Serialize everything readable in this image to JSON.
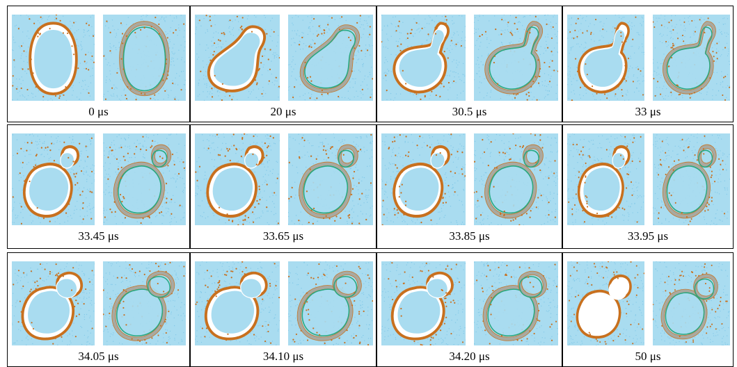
{
  "figure": {
    "rows": [
      {
        "frames": [
          {
            "time_label": "0 μs",
            "stage": "ellipse"
          },
          {
            "time_label": "20 μs",
            "stage": "pear"
          },
          {
            "time_label": "30.5 μs",
            "stage": "bud"
          },
          {
            "time_label": "33 μs",
            "stage": "bud"
          }
        ]
      },
      {
        "frames": [
          {
            "time_label": "33.45 μs",
            "stage": "neck"
          },
          {
            "time_label": "33.65 μs",
            "stage": "neck"
          },
          {
            "time_label": "33.85 μs",
            "stage": "neck"
          },
          {
            "time_label": "33.95 μs",
            "stage": "neck"
          }
        ]
      },
      {
        "frames": [
          {
            "time_label": "34.05 μs",
            "stage": "split"
          },
          {
            "time_label": "34.10 μs",
            "stage": "split"
          },
          {
            "time_label": "34.20 μs",
            "stage": "split"
          },
          {
            "time_label": "50 μs",
            "stage": "detached"
          }
        ]
      }
    ]
  },
  "colors": {
    "solvent": "#a9dcf0",
    "solvent_dot": "#79c4e6",
    "head_orange": "#c8701e",
    "membrane_gray": "#a9a9a0",
    "inner_green": "#27a880",
    "vesicle_interior": "#ffffff"
  }
}
